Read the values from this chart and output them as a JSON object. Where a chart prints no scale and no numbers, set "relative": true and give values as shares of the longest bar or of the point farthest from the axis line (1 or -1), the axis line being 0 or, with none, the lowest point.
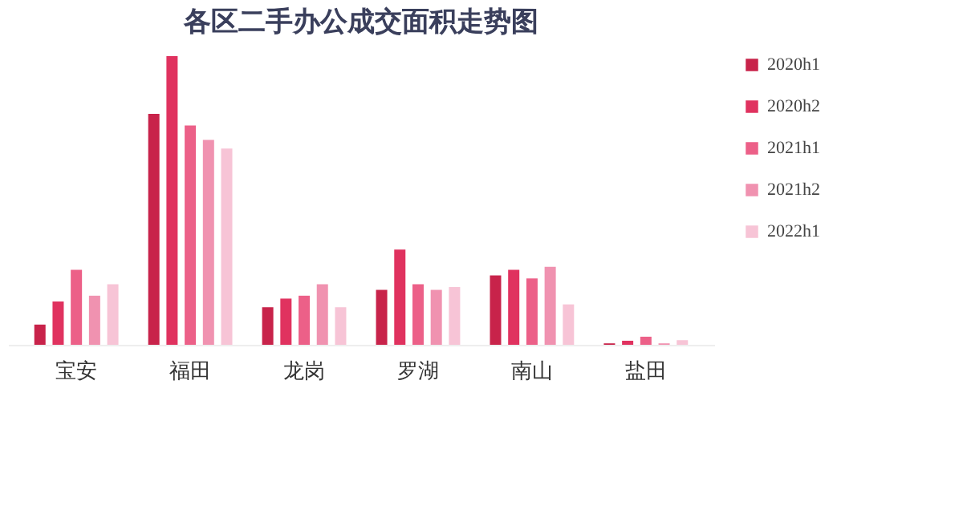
{
  "chart_data": {
    "type": "bar",
    "title": "各区二手办公成交面积走势图",
    "relative": true,
    "categories": [
      "宝安",
      "福田",
      "龙岗",
      "罗湖",
      "南山",
      "盐田"
    ],
    "series": [
      {
        "name": "2020h1",
        "color": "#c8234a",
        "values": [
          0.07,
          0.8,
          0.13,
          0.19,
          0.24,
          0.005
        ]
      },
      {
        "name": "2020h2",
        "color": "#e0325f",
        "values": [
          0.15,
          1,
          0.16,
          0.33,
          0.26,
          0.014
        ]
      },
      {
        "name": "2021h1",
        "color": "#ec6088",
        "values": [
          0.26,
          0.76,
          0.17,
          0.21,
          0.23,
          0.028
        ]
      },
      {
        "name": "2021h2",
        "color": "#f092b0",
        "values": [
          0.17,
          0.71,
          0.21,
          0.19,
          0.27,
          0.005
        ]
      },
      {
        "name": "2022h1",
        "color": "#f7c4d6",
        "values": [
          0.21,
          0.68,
          0.13,
          0.2,
          0.14,
          0.016
        ]
      }
    ],
    "grid": false,
    "legend": "right"
  }
}
